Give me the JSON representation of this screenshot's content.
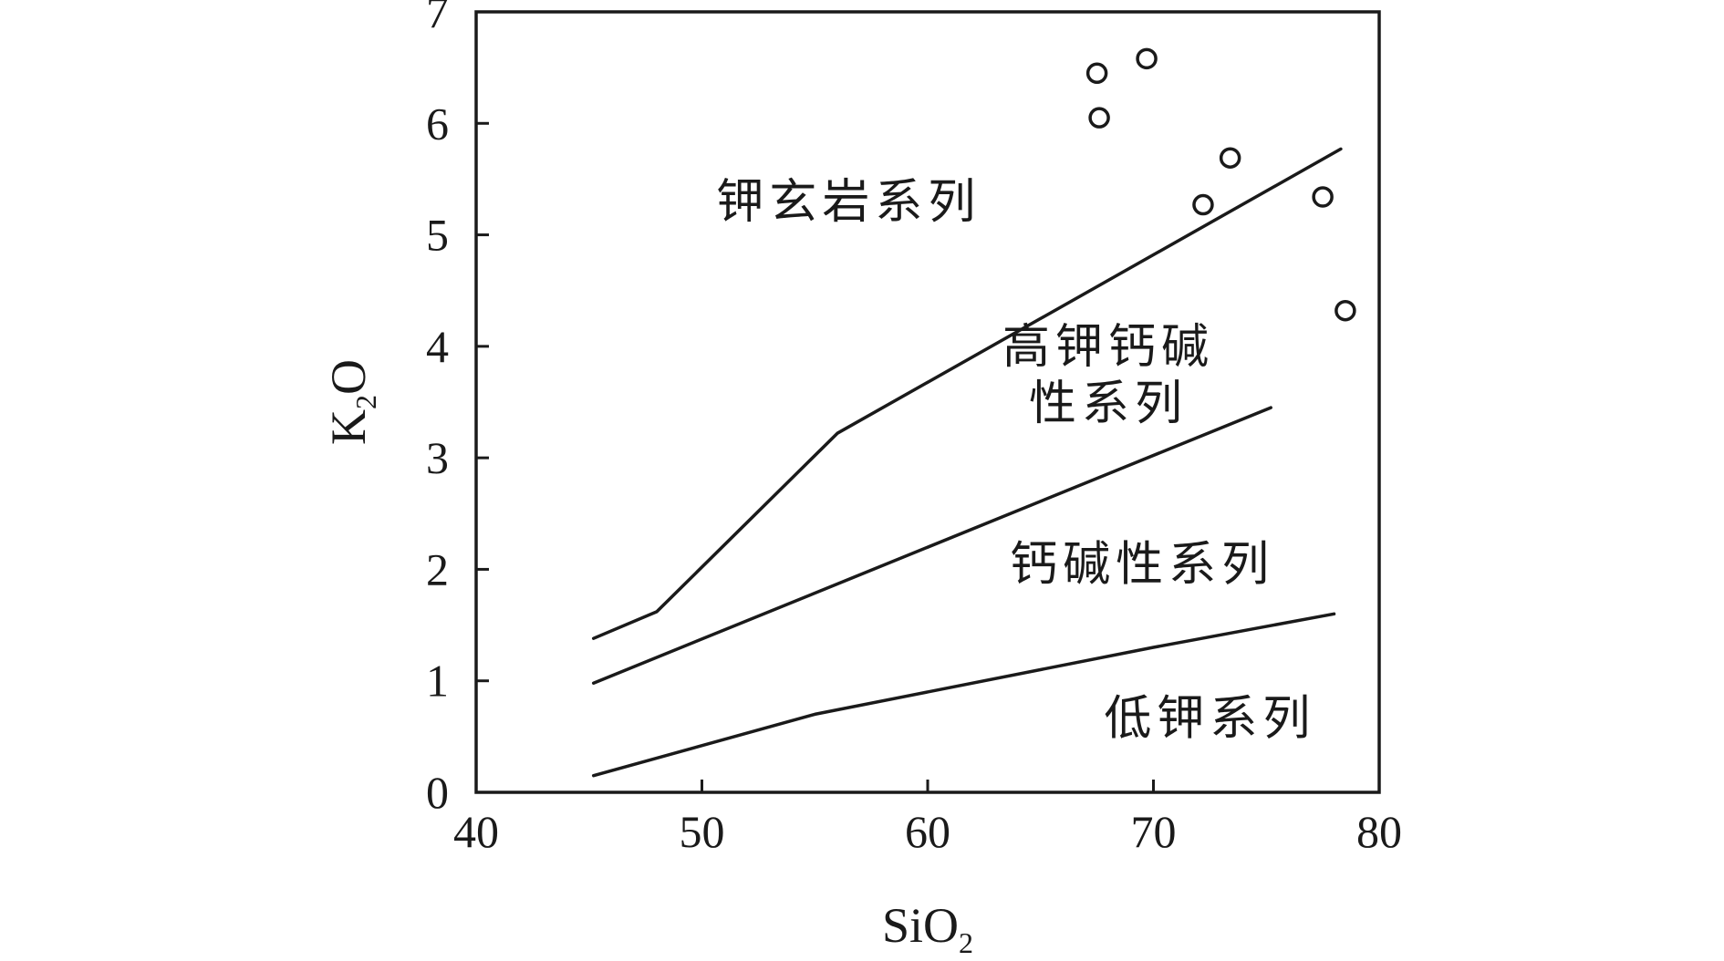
{
  "chart_data": {
    "type": "scatter",
    "xlabel": {
      "main": "SiO",
      "sub": "2"
    },
    "ylabel": {
      "main": "K",
      "sub": "2",
      "tail": "O"
    },
    "xlim": [
      40,
      80
    ],
    "ylim": [
      0,
      7
    ],
    "x_ticks": [
      "40",
      "50",
      "60",
      "70",
      "80"
    ],
    "y_ticks": [
      "0",
      "1",
      "2",
      "3",
      "4",
      "5",
      "6",
      "7"
    ],
    "grid": false,
    "boundaries": [
      {
        "points": [
          [
            45.2,
            0.15
          ],
          [
            55,
            0.7
          ],
          [
            70,
            1.3
          ],
          [
            78,
            1.6
          ]
        ]
      },
      {
        "points": [
          [
            45.2,
            0.98
          ],
          [
            75.2,
            3.45
          ]
        ]
      },
      {
        "points": [
          [
            45.2,
            1.38
          ],
          [
            48,
            1.62
          ],
          [
            56,
            3.22
          ],
          [
            78.3,
            5.77
          ]
        ]
      }
    ],
    "regions": [
      {
        "lines": [
          "钾玄岩系列"
        ],
        "x": 56.5,
        "y": 5.15
      },
      {
        "lines": [
          "高钾钙碱",
          "性系列"
        ],
        "x": 68,
        "y": 3.85
      },
      {
        "lines": [
          "钙碱性系列"
        ],
        "x": 69.5,
        "y": 1.9
      },
      {
        "lines": [
          "低钾系列"
        ],
        "x": 72.5,
        "y": 0.52
      }
    ],
    "series": [
      {
        "points": [
          [
            67.5,
            6.45
          ],
          [
            67.6,
            6.05
          ],
          [
            69.7,
            6.58
          ],
          [
            72.2,
            5.27
          ],
          [
            73.4,
            5.69
          ],
          [
            77.5,
            5.34
          ],
          [
            78.5,
            4.32
          ]
        ]
      }
    ]
  }
}
